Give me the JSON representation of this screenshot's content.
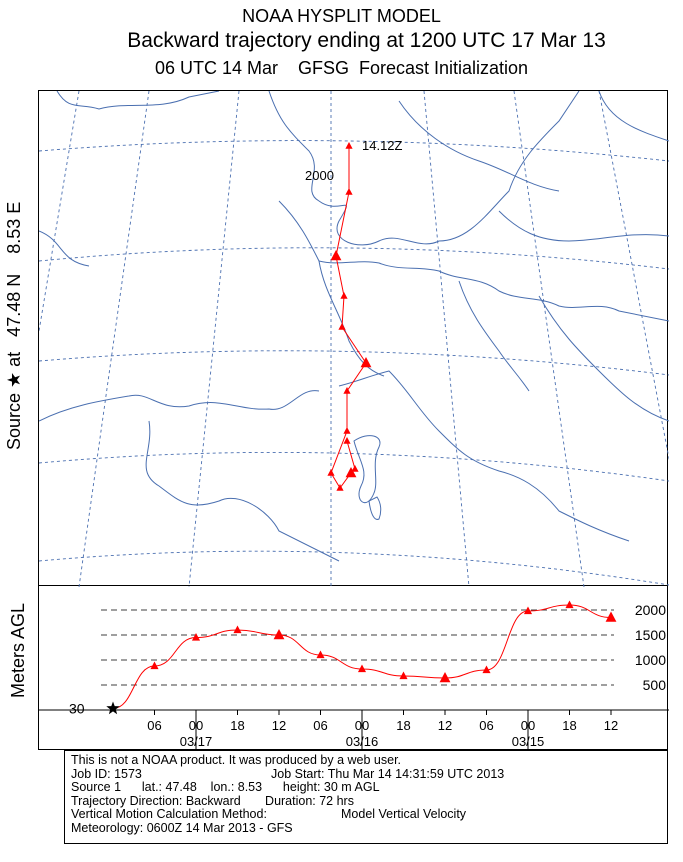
{
  "header": {
    "line1": "NOAA HYSPLIT MODEL",
    "line2": "Backward trajectory ending at 1200 UTC 17 Mar 13",
    "line3": "06 UTC 14 Mar    GFSG  Forecast Initialization"
  },
  "side_label": "Source ★ at   47.48 N    8.53 E",
  "meters_label": "Meters AGL",
  "map": {
    "end_label": "14.12Z",
    "height_label": "2000",
    "trajectory_color": "#ff0000",
    "map_line_color": "#4a6fb0"
  },
  "chart_data": {
    "type": "line",
    "title": "Backward trajectory ending at 1200 UTC 17 Mar 13",
    "xlabel": "",
    "ylabel": "Meters AGL",
    "x_tick_labels": [
      "06",
      "00",
      "18",
      "12",
      "06",
      "00",
      "18",
      "12",
      "06",
      "00",
      "18",
      "12"
    ],
    "date_labels": [
      "03/17",
      "03/16",
      "03/15"
    ],
    "y_tick_labels": [
      "2000",
      "1500",
      "1000",
      "500"
    ],
    "start_label": "30",
    "ylim": [
      0,
      2300
    ],
    "series": [
      {
        "hours_back": [
          0,
          6,
          12,
          18,
          24,
          30,
          36,
          42,
          48,
          54,
          60,
          66,
          72
        ],
        "values": [
          30,
          880,
          1450,
          1600,
          1500,
          1100,
          820,
          680,
          640,
          800,
          1980,
          2100,
          1850
        ]
      }
    ]
  },
  "info": {
    "line1": "This is not a NOAA product. It was produced by a web user.",
    "job_id": "Job ID: 1573",
    "job_start": "Job Start: Thu Mar 14 14:31:59 UTC 2013",
    "source": "Source 1      lat.: 47.48    lon.: 8.53      height: 30 m AGL",
    "direction": "Trajectory Direction: Backward       Duration: 72 hrs",
    "vertical_label": "Vertical Motion Calculation Method:",
    "vertical_value": "Model Vertical Velocity",
    "meteorology": "Meteorology: 0600Z 14 Mar 2013 - GFS"
  }
}
